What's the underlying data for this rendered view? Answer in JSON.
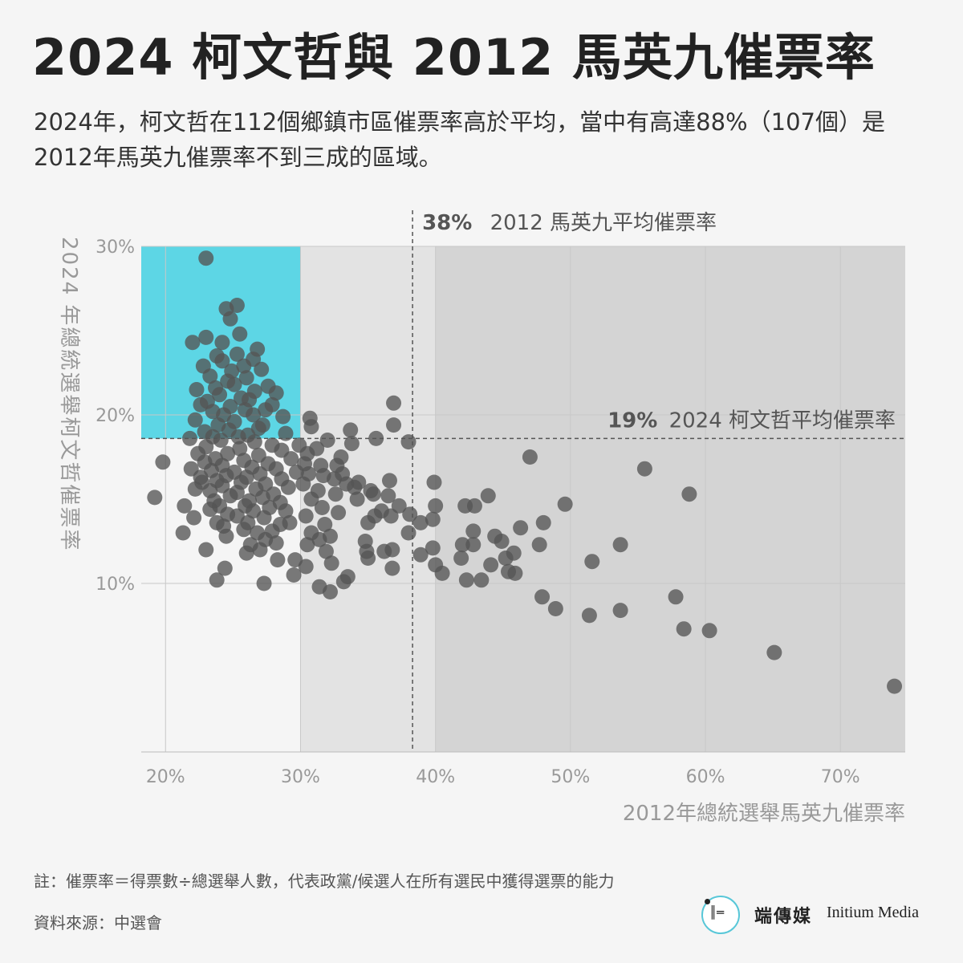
{
  "title": "2024 柯文哲與 2012 馬英九催票率",
  "subtitle": "2024年，柯文哲在112個鄉鎮市區催票率高於平均，當中有高達88%（107個）是2012年馬英九催票率不到三成的區域。",
  "note": "註：催票率＝得票數÷總選舉人數，代表政黨/候選人在所有選民中獲得選票的能力",
  "source": "資料來源：中選會",
  "brand": {
    "logo_icon": "initium-logo-icon",
    "name_zh": "端傳媒",
    "name_en": "Initium Media"
  },
  "colors": {
    "background": "#f5f5f5",
    "highlight": "#5dd6e5",
    "dot": "#555555",
    "shade_light": "#e3e3e3",
    "shade_dark": "#d4d4d4"
  },
  "chart_data": {
    "type": "scatter",
    "xlabel": "2012年總統選舉馬英九催票率",
    "ylabel": "2024 年總統選舉柯文哲催票率",
    "xlim": [
      18.2,
      74.8
    ],
    "ylim": [
      0,
      30
    ],
    "xticks": [
      20,
      30,
      40,
      50,
      60,
      70
    ],
    "xtick_labels": [
      "20%",
      "30%",
      "40%",
      "50%",
      "60%",
      "70%"
    ],
    "yticks": [
      10,
      20,
      30
    ],
    "ytick_labels": [
      "10%",
      "20%",
      "30%"
    ],
    "grid": true,
    "reference_lines": {
      "x": {
        "value": 38.3,
        "label_value": "38%",
        "label_text": "2012 馬英九平均催票率"
      },
      "y": {
        "value": 18.6,
        "label_value": "19%",
        "label_text": "2024 柯文哲平均催票率"
      }
    },
    "highlight_region": {
      "x": [
        18.2,
        30
      ],
      "y": [
        18.6,
        30
      ]
    },
    "shaded_regions": [
      {
        "x": [
          30,
          40
        ],
        "y": [
          0,
          30
        ],
        "tone": "light"
      },
      {
        "x": [
          40,
          74.8
        ],
        "y": [
          0,
          30
        ],
        "tone": "dark"
      }
    ],
    "series": [
      {
        "points": [
          [
            23.0,
            29.3
          ],
          [
            24.5,
            26.3
          ],
          [
            25.3,
            26.5
          ],
          [
            24.8,
            25.7
          ],
          [
            25.5,
            24.8
          ],
          [
            23.0,
            24.6
          ],
          [
            22.0,
            24.3
          ],
          [
            24.2,
            24.3
          ],
          [
            26.8,
            23.9
          ],
          [
            25.3,
            23.6
          ],
          [
            23.8,
            23.5
          ],
          [
            26.5,
            23.3
          ],
          [
            24.2,
            23.2
          ],
          [
            22.8,
            22.9
          ],
          [
            25.8,
            22.9
          ],
          [
            27.1,
            22.7
          ],
          [
            24.9,
            22.6
          ],
          [
            23.3,
            22.3
          ],
          [
            26.0,
            22.2
          ],
          [
            24.6,
            22.0
          ],
          [
            25.1,
            21.8
          ],
          [
            22.3,
            21.5
          ],
          [
            23.7,
            21.6
          ],
          [
            27.6,
            21.7
          ],
          [
            26.6,
            21.4
          ],
          [
            28.2,
            21.3
          ],
          [
            24.0,
            21.2
          ],
          [
            25.6,
            21.0
          ],
          [
            23.1,
            20.8
          ],
          [
            26.2,
            20.9
          ],
          [
            22.6,
            20.6
          ],
          [
            27.9,
            20.6
          ],
          [
            24.8,
            20.5
          ],
          [
            25.9,
            20.3
          ],
          [
            27.4,
            20.3
          ],
          [
            23.5,
            20.2
          ],
          [
            26.5,
            20.0
          ],
          [
            24.3,
            20.0
          ],
          [
            28.7,
            19.9
          ],
          [
            22.2,
            19.7
          ],
          [
            25.1,
            19.6
          ],
          [
            27.2,
            19.4
          ],
          [
            23.9,
            19.4
          ],
          [
            26.9,
            19.2
          ],
          [
            24.7,
            19.1
          ],
          [
            22.9,
            19.0
          ],
          [
            28.9,
            18.9
          ],
          [
            26.1,
            18.8
          ],
          [
            25.4,
            18.7
          ],
          [
            23.5,
            18.7
          ],
          [
            21.8,
            18.6
          ],
          [
            24.1,
            18.5
          ],
          [
            26.6,
            18.4
          ],
          [
            27.9,
            18.2
          ],
          [
            23.0,
            18.1
          ],
          [
            25.5,
            18.0
          ],
          [
            28.6,
            17.9
          ],
          [
            22.4,
            17.7
          ],
          [
            24.6,
            17.7
          ],
          [
            26.9,
            17.6
          ],
          [
            23.7,
            17.4
          ],
          [
            29.3,
            17.4
          ],
          [
            25.8,
            17.3
          ],
          [
            22.9,
            17.2
          ],
          [
            27.6,
            17.1
          ],
          [
            24.2,
            17.0
          ],
          [
            26.4,
            16.9
          ],
          [
            21.9,
            16.8
          ],
          [
            28.2,
            16.8
          ],
          [
            23.4,
            16.7
          ],
          [
            25.1,
            16.6
          ],
          [
            29.7,
            16.6
          ],
          [
            27.0,
            16.5
          ],
          [
            24.5,
            16.4
          ],
          [
            22.6,
            16.3
          ],
          [
            26.0,
            16.3
          ],
          [
            28.6,
            16.2
          ],
          [
            23.8,
            16.1
          ],
          [
            25.6,
            16.0
          ],
          [
            27.4,
            15.9
          ],
          [
            24.2,
            15.8
          ],
          [
            22.2,
            15.6
          ],
          [
            26.7,
            15.6
          ],
          [
            29.1,
            15.7
          ],
          [
            23.3,
            15.5
          ],
          [
            25.3,
            15.4
          ],
          [
            28.0,
            15.3
          ],
          [
            24.8,
            15.2
          ],
          [
            27.2,
            15.1
          ],
          [
            23.6,
            14.9
          ],
          [
            26.2,
            14.9
          ],
          [
            28.5,
            14.8
          ],
          [
            24.0,
            14.6
          ],
          [
            25.9,
            14.6
          ],
          [
            27.7,
            14.5
          ],
          [
            21.4,
            14.6
          ],
          [
            23.3,
            14.4
          ],
          [
            26.5,
            14.3
          ],
          [
            28.9,
            14.3
          ],
          [
            24.6,
            14.1
          ],
          [
            25.3,
            14.0
          ],
          [
            22.1,
            13.9
          ],
          [
            27.3,
            13.9
          ],
          [
            23.8,
            13.6
          ],
          [
            26.1,
            13.6
          ],
          [
            28.5,
            13.5
          ],
          [
            24.3,
            13.4
          ],
          [
            25.8,
            13.2
          ],
          [
            27.9,
            13.1
          ],
          [
            26.8,
            13.0
          ],
          [
            24.5,
            12.8
          ],
          [
            27.4,
            12.6
          ],
          [
            28.2,
            12.4
          ],
          [
            26.3,
            12.3
          ],
          [
            23.0,
            12.0
          ],
          [
            27.0,
            12.0
          ],
          [
            26.0,
            11.8
          ],
          [
            28.3,
            11.4
          ],
          [
            24.4,
            10.9
          ],
          [
            27.3,
            10.0
          ],
          [
            23.8,
            10.2
          ],
          [
            19.2,
            15.1
          ],
          [
            19.8,
            17.2
          ],
          [
            22.7,
            16.0
          ],
          [
            21.3,
            13.0
          ],
          [
            29.2,
            13.6
          ],
          [
            29.6,
            11.4
          ],
          [
            29.5,
            10.5
          ],
          [
            29.9,
            18.2
          ],
          [
            30.7,
            19.8
          ],
          [
            30.8,
            19.3
          ],
          [
            30.5,
            17.7
          ],
          [
            30.3,
            17.1
          ],
          [
            30.6,
            16.5
          ],
          [
            30.2,
            15.9
          ],
          [
            30.8,
            15.0
          ],
          [
            30.4,
            14.0
          ],
          [
            30.8,
            13.0
          ],
          [
            30.5,
            12.3
          ],
          [
            30.4,
            11.0
          ],
          [
            31.2,
            18.0
          ],
          [
            31.5,
            17.0
          ],
          [
            31.7,
            16.4
          ],
          [
            31.3,
            15.5
          ],
          [
            31.6,
            14.5
          ],
          [
            31.8,
            13.5
          ],
          [
            31.4,
            12.6
          ],
          [
            31.9,
            11.9
          ],
          [
            31.4,
            9.8
          ],
          [
            32.0,
            18.5
          ],
          [
            32.2,
            12.8
          ],
          [
            32.3,
            11.2
          ],
          [
            32.2,
            9.5
          ],
          [
            32.7,
            17.0
          ],
          [
            32.5,
            16.2
          ],
          [
            32.6,
            15.3
          ],
          [
            32.8,
            14.2
          ],
          [
            33.0,
            17.5
          ],
          [
            33.1,
            16.5
          ],
          [
            33.4,
            15.9
          ],
          [
            33.2,
            10.1
          ],
          [
            33.5,
            10.4
          ],
          [
            33.7,
            19.1
          ],
          [
            33.8,
            18.3
          ],
          [
            34.0,
            15.7
          ],
          [
            34.2,
            15.0
          ],
          [
            34.3,
            16.0
          ],
          [
            34.8,
            12.5
          ],
          [
            34.9,
            11.9
          ],
          [
            35.0,
            11.5
          ],
          [
            35.0,
            13.6
          ],
          [
            35.2,
            15.5
          ],
          [
            35.4,
            15.3
          ],
          [
            35.5,
            14.0
          ],
          [
            35.6,
            18.6
          ],
          [
            36.0,
            14.3
          ],
          [
            36.2,
            11.9
          ],
          [
            36.5,
            15.2
          ],
          [
            36.6,
            16.1
          ],
          [
            36.7,
            14.0
          ],
          [
            36.8,
            12.0
          ],
          [
            36.9,
            19.4
          ],
          [
            36.9,
            20.7
          ],
          [
            37.3,
            14.6
          ],
          [
            36.8,
            10.9
          ],
          [
            38.0,
            18.4
          ],
          [
            38.1,
            14.1
          ],
          [
            38.0,
            13.0
          ],
          [
            38.9,
            13.6
          ],
          [
            38.9,
            11.7
          ],
          [
            39.9,
            16.0
          ],
          [
            40.0,
            14.6
          ],
          [
            39.8,
            13.8
          ],
          [
            39.8,
            12.1
          ],
          [
            40.0,
            11.1
          ],
          [
            40.5,
            10.6
          ],
          [
            41.9,
            11.5
          ],
          [
            42.0,
            12.3
          ],
          [
            42.2,
            14.6
          ],
          [
            42.3,
            10.2
          ],
          [
            42.9,
            14.6
          ],
          [
            42.8,
            13.1
          ],
          [
            42.8,
            12.3
          ],
          [
            43.4,
            10.2
          ],
          [
            43.9,
            15.2
          ],
          [
            44.1,
            11.1
          ],
          [
            44.4,
            12.8
          ],
          [
            44.9,
            12.5
          ],
          [
            45.2,
            11.5
          ],
          [
            45.4,
            10.7
          ],
          [
            45.8,
            11.8
          ],
          [
            45.9,
            10.6
          ],
          [
            46.3,
            13.3
          ],
          [
            47.0,
            17.5
          ],
          [
            47.7,
            12.3
          ],
          [
            48.0,
            13.6
          ],
          [
            47.9,
            9.2
          ],
          [
            48.9,
            8.5
          ],
          [
            49.6,
            14.7
          ],
          [
            51.4,
            8.1
          ],
          [
            51.6,
            11.3
          ],
          [
            53.7,
            12.3
          ],
          [
            53.7,
            8.4
          ],
          [
            55.5,
            16.8
          ],
          [
            57.8,
            9.2
          ],
          [
            58.4,
            7.3
          ],
          [
            58.8,
            15.3
          ],
          [
            60.3,
            7.2
          ],
          [
            65.1,
            5.9
          ],
          [
            74.0,
            3.9
          ]
        ]
      }
    ]
  }
}
